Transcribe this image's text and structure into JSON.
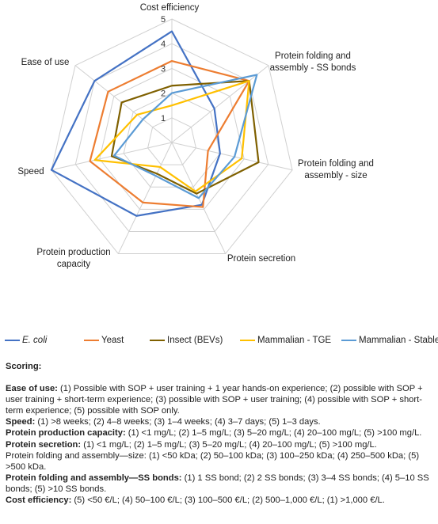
{
  "chart_data": {
    "type": "radar",
    "axes": [
      "Cost efficiency",
      "Protein folding and assembly - SS bonds",
      "Protein folding and assembly - size",
      "Protein secretion",
      "Protein production capacity",
      "Speed",
      "Ease of use"
    ],
    "axis_label_lines": [
      [
        "Cost efficiency"
      ],
      [
        "Protein folding and",
        "assembly - SS bonds"
      ],
      [
        "Protein folding and",
        "assembly - size"
      ],
      [
        "Protein secretion"
      ],
      [
        "Protein production",
        "capacity"
      ],
      [
        "Speed"
      ],
      [
        "Ease of use"
      ]
    ],
    "rlim": [
      0,
      5
    ],
    "ticks": [
      "1",
      "2",
      "3",
      "4",
      "5"
    ],
    "tick_values": [
      1,
      2,
      3,
      4,
      5
    ],
    "series": [
      {
        "name": "E. coli",
        "color": "#4472c4",
        "values": [
          4.5,
          2.2,
          2,
          2.8,
          3.3,
          5,
          4
        ]
      },
      {
        "name": "Yeast",
        "color": "#ed7d31",
        "values": [
          3.3,
          4,
          1.5,
          2.9,
          2.7,
          3.4,
          3.3
        ]
      },
      {
        "name": "Insect (BEVs)",
        "color": "#7f6000",
        "values": [
          2.3,
          4,
          3.6,
          2.3,
          1.4,
          2.5,
          2.6
        ]
      },
      {
        "name": "Mammalian - TGE",
        "color": "#ffc000",
        "values": [
          1.5,
          4,
          2.9,
          2.2,
          1.1,
          3.2,
          1.8
        ]
      },
      {
        "name": "Mammalian - Stable",
        "color": "#5b9bd5",
        "values": [
          2,
          4.4,
          2.6,
          2.5,
          1.5,
          2.4,
          1.5
        ]
      }
    ],
    "legend_position": "bottom",
    "grid": true
  },
  "scoring": {
    "title": "Scoring:",
    "items": [
      {
        "label": "Ease of use:",
        "text": " (1) Possible with SOP + user training + 1 year hands-on experience; (2) possible with SOP + user training + short-term experience; (3) possible with SOP + user training; (4) possible with SOP + short-term experience; (5) possible with SOP only."
      },
      {
        "label": "Speed:",
        "text": " (1) >8 weeks; (2) 4–8 weeks; (3) 1–4 weeks; (4) 3–7 days; (5) 1–3 days."
      },
      {
        "label": "Protein production capacity:",
        "text": " (1) <1 mg/L; (2) 1–5 mg/L; (3) 5–20 mg/L; (4) 20–100 mg/L; (5) >100 mg/L."
      },
      {
        "label": "Protein secretion:",
        "text": " (1) <1 mg/L; (2) 1–5 mg/L; (3) 5–20 mg/L; (4) 20–100 mg/L; (5) >100 mg/L."
      },
      {
        "label": "",
        "text": "Protein folding and assembly—size: (1) <50 kDa; (2) 50–100 kDa; (3) 100–250 kDa; (4) 250–500 kDa; (5) >500 kDa."
      },
      {
        "label": "Protein folding and assembly—SS bonds:",
        "text": " (1) 1 SS bond; (2) 2 SS bonds; (3) 3–4 SS bonds; (4) 5–10 SS bonds; (5) >10 SS bonds."
      },
      {
        "label": "Cost efficiency:",
        "text": " (5) <50 €/L; (4) 50–100 €/L; (3) 100–500 €/L; (2) 500–1,000 €/L; (1) >1,000 €/L."
      }
    ]
  }
}
